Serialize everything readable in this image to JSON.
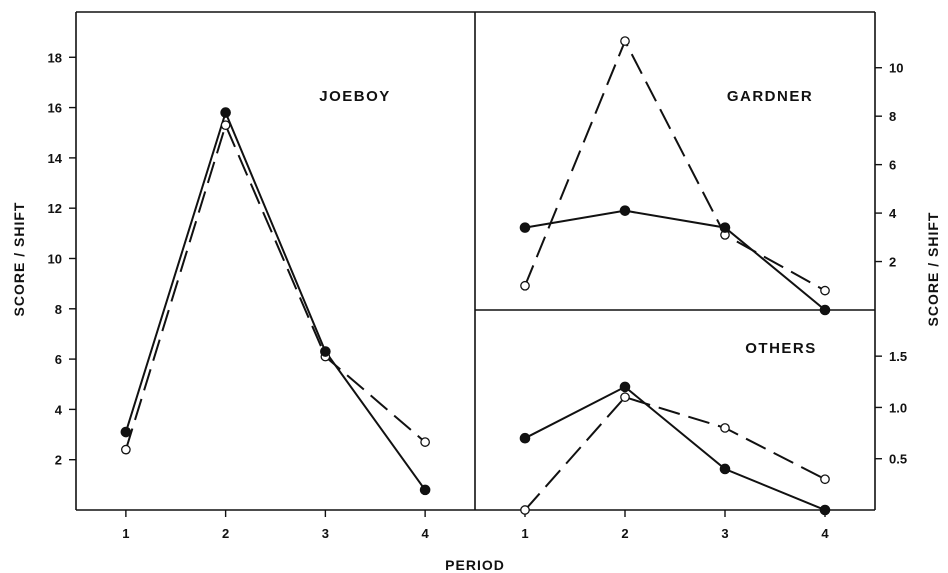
{
  "x_label": "PERIOD",
  "y_label_left": "SCORE / SHIFT",
  "y_label_right": "SCORE / SHIFT",
  "chart_data": [
    {
      "type": "line",
      "title": "JOEBOY",
      "x": [
        1,
        2,
        3,
        4
      ],
      "xlim": [
        0.5,
        4.5
      ],
      "ylim": [
        0,
        19.8
      ],
      "y_ticks": [
        2,
        4,
        6,
        8,
        10,
        12,
        14,
        16,
        18
      ],
      "y_axis_side": "left",
      "series": [
        {
          "style": "solid-filled",
          "values": [
            3.1,
            15.8,
            6.3,
            0.8
          ]
        },
        {
          "style": "dashed-open",
          "values": [
            2.4,
            15.3,
            6.1,
            2.7
          ]
        }
      ]
    },
    {
      "type": "line",
      "title": "GARDNER",
      "x": [
        1,
        2,
        3,
        4
      ],
      "xlim": [
        0.5,
        4.5
      ],
      "ylim": [
        0,
        12.3
      ],
      "y_ticks": [
        2,
        4,
        6,
        8,
        10
      ],
      "y_axis_side": "right",
      "series": [
        {
          "style": "solid-filled",
          "values": [
            3.4,
            4.1,
            3.4,
            0
          ]
        },
        {
          "style": "dashed-open",
          "values": [
            1,
            11.1,
            3.1,
            0.8
          ]
        }
      ]
    },
    {
      "type": "line",
      "title": "OTHERS",
      "x": [
        1,
        2,
        3,
        4
      ],
      "xlim": [
        0.5,
        4.5
      ],
      "ylim": [
        0,
        1.95
      ],
      "y_ticks": [
        0.5,
        1.0,
        1.5
      ],
      "y_axis_side": "right",
      "series": [
        {
          "style": "solid-filled",
          "values": [
            0.7,
            1.2,
            0.4,
            0
          ]
        },
        {
          "style": "dashed-open",
          "values": [
            0,
            1.1,
            0.8,
            0.3
          ]
        }
      ]
    }
  ]
}
